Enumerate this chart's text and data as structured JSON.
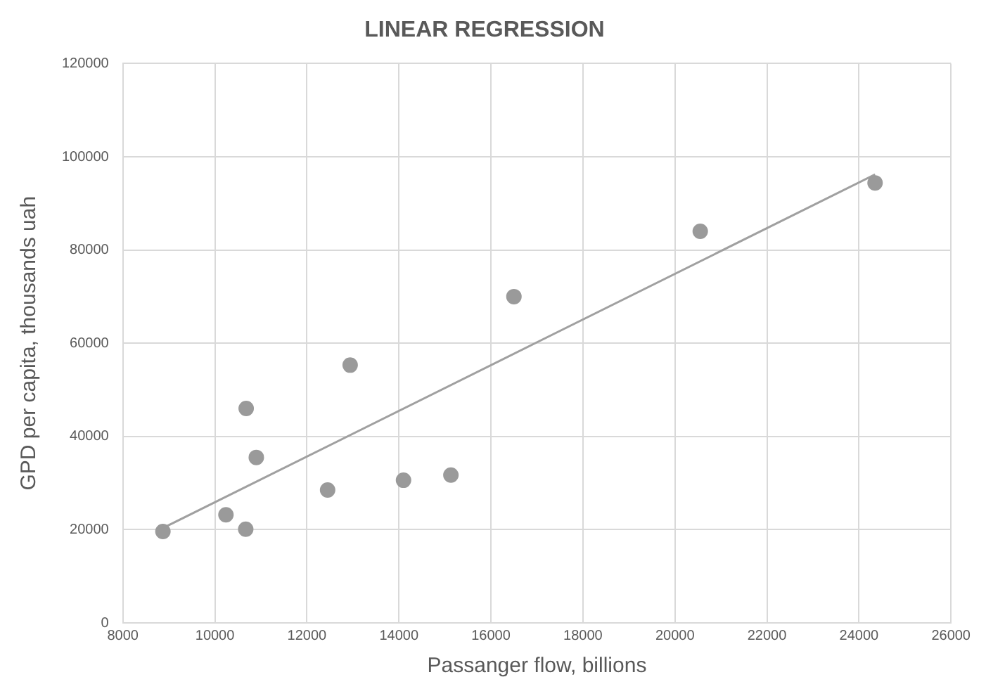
{
  "chart_data": {
    "type": "scatter",
    "title": "LINEAR REGRESSION",
    "xlabel": "Passanger flow, billions",
    "ylabel": "GPD per capita, thousands uah",
    "series": [
      {
        "type": "scatter",
        "color": "#9a9a9a",
        "marker": "circle",
        "x": [
          8870,
          10240,
          10670,
          10680,
          10900,
          12450,
          12940,
          14100,
          15130,
          16500,
          20550,
          24350
        ],
        "values": [
          19600,
          23200,
          20100,
          46000,
          35500,
          28500,
          55300,
          30600,
          31700,
          70000,
          84000,
          94400
        ]
      },
      {
        "type": "line",
        "color": "#a0a0a0",
        "marker": "none",
        "x": [
          8900,
          24350
        ],
        "values": [
          20500,
          96200
        ]
      }
    ],
    "xlim": [
      8000,
      26000
    ],
    "xticks": [
      8000,
      10000,
      12000,
      14000,
      16000,
      18000,
      20000,
      22000,
      24000,
      26000
    ],
    "ylim": [
      0,
      120000
    ],
    "yticks": [
      0,
      20000,
      40000,
      60000,
      80000,
      100000,
      120000
    ],
    "grid": true,
    "legend": false
  }
}
